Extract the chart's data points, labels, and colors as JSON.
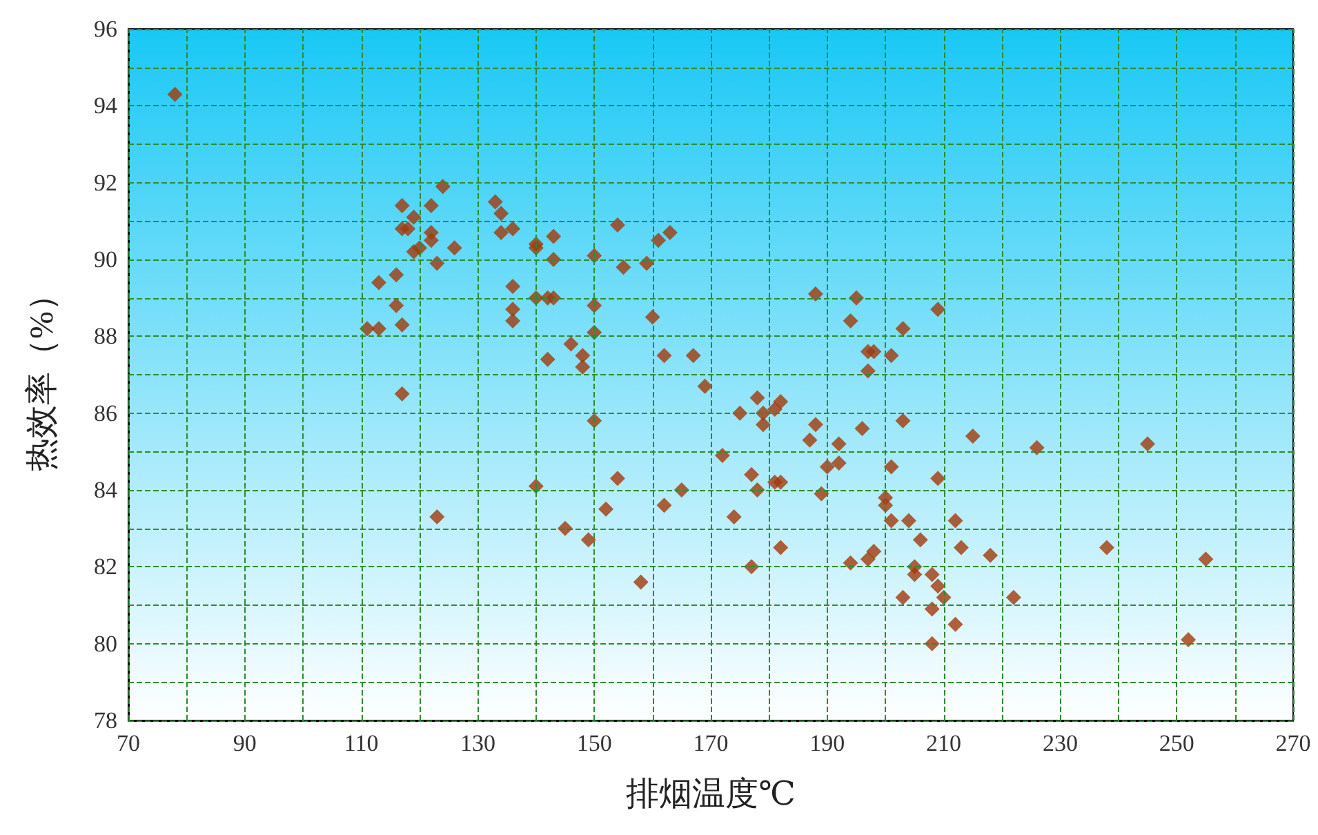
{
  "chart_data": {
    "type": "scatter",
    "xlabel": "排烟温度℃",
    "ylabel": "热效率（%）",
    "marker": "diamond",
    "grid": true,
    "xlim": [
      70,
      270
    ],
    "ylim": [
      78,
      96
    ],
    "xticks": [
      70,
      {
        "value": 80,
        "label": null
      },
      90,
      {
        "value": 100,
        "label": null
      },
      110,
      {
        "value": 120,
        "label": null
      },
      130,
      {
        "value": 140,
        "label": null
      },
      150,
      {
        "value": 160,
        "label": null
      },
      170,
      {
        "value": 180,
        "label": null
      },
      190,
      {
        "value": 200,
        "label": null
      },
      210,
      {
        "value": 220,
        "label": null
      },
      230,
      {
        "value": 240,
        "label": null
      },
      250,
      {
        "value": 260,
        "label": null
      },
      270
    ],
    "yticks": [
      78,
      {
        "value": 79,
        "label": null
      },
      80,
      {
        "value": 81,
        "label": null
      },
      82,
      {
        "value": 83,
        "label": null
      },
      84,
      {
        "value": 85,
        "label": null
      },
      86,
      {
        "value": 87,
        "label": null
      },
      88,
      {
        "value": 89,
        "label": null
      },
      90,
      {
        "value": 91,
        "label": null
      },
      92,
      {
        "value": 93,
        "label": null
      },
      94,
      {
        "value": 95,
        "label": null
      },
      96
    ],
    "series": [
      {
        "color": "#a33a0a",
        "x": [
          78,
          111,
          113,
          113,
          116,
          116,
          117,
          117,
          118,
          117,
          117,
          119,
          119,
          120,
          122,
          122,
          122,
          123,
          124,
          123,
          126,
          133,
          134,
          134,
          136,
          136,
          136,
          136,
          140,
          140,
          140,
          140,
          142,
          142,
          143,
          143,
          143,
          145,
          146,
          148,
          148,
          149,
          150,
          150,
          150,
          150,
          152,
          154,
          154,
          155,
          158,
          159,
          160,
          161,
          162,
          162,
          163,
          165,
          167,
          169,
          172,
          174,
          175,
          177,
          177,
          178,
          178,
          179,
          179,
          181,
          181,
          182,
          182,
          182,
          187,
          188,
          188,
          189,
          190,
          192,
          192,
          194,
          194,
          195,
          196,
          197,
          197,
          197,
          198,
          198,
          200,
          200,
          201,
          201,
          201,
          203,
          203,
          203,
          204,
          205,
          205,
          206,
          208,
          208,
          208,
          209,
          209,
          209,
          210,
          212,
          212,
          213,
          215,
          218,
          222,
          226,
          238,
          245,
          252,
          255
        ],
        "values": [
          94.3,
          88.2,
          88.2,
          89.4,
          88.8,
          89.6,
          91.4,
          90.8,
          90.8,
          88.3,
          86.5,
          90.2,
          91.1,
          90.3,
          91.4,
          90.7,
          90.5,
          89.9,
          91.9,
          83.3,
          90.3,
          91.5,
          91.2,
          90.7,
          90.8,
          89.3,
          88.7,
          88.4,
          90.4,
          90.3,
          89.0,
          84.1,
          89.0,
          87.4,
          89.0,
          90.0,
          90.6,
          83.0,
          87.8,
          87.5,
          87.2,
          82.7,
          90.1,
          88.8,
          88.1,
          85.8,
          83.5,
          90.9,
          84.3,
          89.8,
          81.6,
          89.9,
          88.5,
          90.5,
          87.5,
          83.6,
          90.7,
          84.0,
          87.5,
          86.7,
          84.9,
          83.3,
          86.0,
          84.4,
          82.0,
          86.4,
          84.0,
          86.0,
          85.7,
          86.1,
          84.2,
          86.3,
          84.2,
          82.5,
          85.3,
          89.1,
          85.7,
          83.9,
          84.6,
          85.2,
          84.7,
          88.4,
          82.1,
          89.0,
          85.6,
          87.6,
          87.1,
          82.2,
          87.6,
          82.4,
          83.8,
          83.6,
          87.5,
          84.6,
          83.2,
          88.2,
          85.8,
          81.2,
          83.2,
          82.0,
          81.8,
          82.7,
          81.8,
          80.9,
          80.0,
          88.7,
          84.3,
          81.5,
          81.2,
          83.2,
          80.5,
          82.5,
          85.4,
          82.3,
          81.2,
          85.1,
          82.5,
          85.2,
          80.1,
          82.2
        ]
      }
    ]
  }
}
